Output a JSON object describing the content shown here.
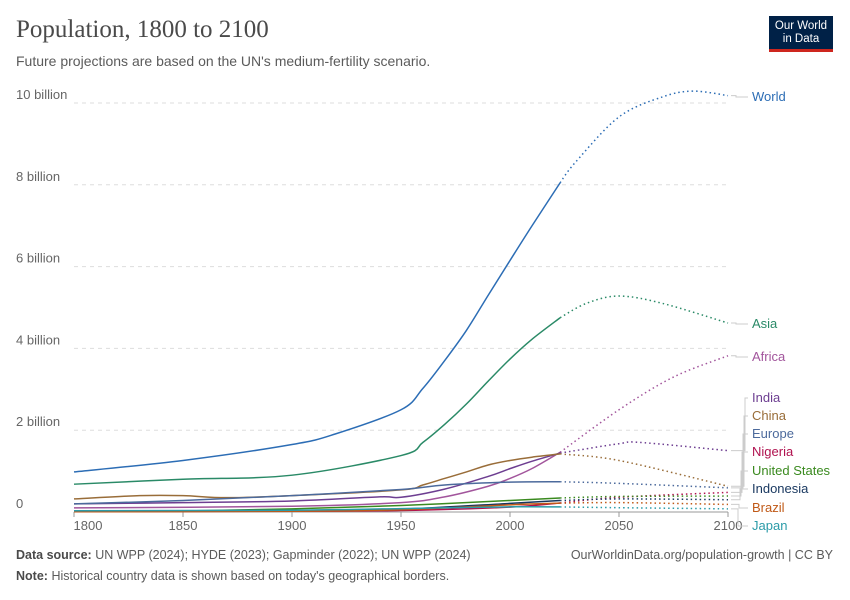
{
  "title": "Population, 1800 to 2100",
  "subtitle": "Future projections are based on the UN's medium-fertility scenario.",
  "logo": "Our World in Data",
  "footer": {
    "source_label": "Data source:",
    "source": "UN WPP (2024); HYDE (2023); Gapminder (2022); UN WPP (2024)",
    "url": "OurWorldinData.org/population-growth | CC BY",
    "note_label": "Note:",
    "note": "Historical country data is shown based on today's geographical borders."
  },
  "chart_data": {
    "type": "line",
    "xlim": [
      1800,
      2100
    ],
    "ylim": [
      0,
      10.5
    ],
    "projection_start": 2023,
    "x_ticks": [
      1800,
      1850,
      1900,
      1950,
      2000,
      2050,
      2100
    ],
    "y_ticks": [
      {
        "v": 0,
        "label": "0"
      },
      {
        "v": 2,
        "label": "2 billion"
      },
      {
        "v": 4,
        "label": "4 billion"
      },
      {
        "v": 6,
        "label": "6 billion"
      },
      {
        "v": 8,
        "label": "8 billion"
      },
      {
        "v": 10,
        "label": "10 billion"
      }
    ],
    "grid": true,
    "legend": "right, inline labels",
    "series": [
      {
        "name": "World",
        "color": "#2c6db5",
        "x": [
          1800,
          1850,
          1900,
          1920,
          1950,
          1960,
          1970,
          1980,
          1990,
          2000,
          2010,
          2023,
          2030,
          2050,
          2070,
          2084,
          2100
        ],
        "y": [
          0.98,
          1.26,
          1.65,
          1.91,
          2.5,
          3.02,
          3.7,
          4.44,
          5.3,
          6.15,
          6.99,
          8.05,
          8.55,
          9.66,
          10.15,
          10.29,
          10.18
        ]
      },
      {
        "name": "Asia",
        "color": "#2a8a67",
        "x": [
          1800,
          1850,
          1900,
          1950,
          1960,
          1970,
          1980,
          1990,
          2000,
          2010,
          2023,
          2035,
          2050,
          2070,
          2100
        ],
        "y": [
          0.68,
          0.8,
          0.9,
          1.38,
          1.7,
          2.14,
          2.64,
          3.2,
          3.74,
          4.22,
          4.75,
          5.1,
          5.28,
          5.1,
          4.62
        ]
      },
      {
        "name": "Africa",
        "color": "#a2559c",
        "x": [
          1800,
          1900,
          1950,
          1970,
          1990,
          2000,
          2010,
          2023,
          2050,
          2075,
          2100
        ],
        "y": [
          0.1,
          0.14,
          0.23,
          0.37,
          0.63,
          0.82,
          1.06,
          1.46,
          2.5,
          3.3,
          3.82
        ]
      },
      {
        "name": "India",
        "color": "#6d3e91",
        "x": [
          1800,
          1850,
          1900,
          1940,
          1950,
          1970,
          1990,
          2000,
          2010,
          2023,
          2050,
          2060,
          2100
        ],
        "y": [
          0.2,
          0.23,
          0.27,
          0.37,
          0.36,
          0.56,
          0.87,
          1.06,
          1.24,
          1.44,
          1.67,
          1.7,
          1.5
        ]
      },
      {
        "name": "China",
        "color": "#996d39",
        "x": [
          1800,
          1830,
          1850,
          1870,
          1900,
          1950,
          1960,
          1970,
          1980,
          1990,
          2000,
          2010,
          2023,
          2050,
          2100
        ],
        "y": [
          0.32,
          0.4,
          0.4,
          0.35,
          0.4,
          0.54,
          0.66,
          0.82,
          0.98,
          1.15,
          1.26,
          1.34,
          1.42,
          1.26,
          0.63
        ]
      },
      {
        "name": "Europe",
        "color": "#4c6a9c",
        "x": [
          1800,
          1850,
          1900,
          1950,
          1970,
          2000,
          2023,
          2050,
          2100
        ],
        "y": [
          0.2,
          0.28,
          0.4,
          0.55,
          0.66,
          0.73,
          0.74,
          0.7,
          0.59
        ]
      },
      {
        "name": "Nigeria",
        "color": "#b0124f",
        "x": [
          1800,
          1900,
          1950,
          2000,
          2023,
          2050,
          2100
        ],
        "y": [
          0.01,
          0.02,
          0.037,
          0.12,
          0.22,
          0.36,
          0.48
        ]
      },
      {
        "name": "United States",
        "color": "#3a8a1f",
        "x": [
          1800,
          1850,
          1900,
          1950,
          2000,
          2023,
          2050,
          2100
        ],
        "y": [
          0.006,
          0.023,
          0.076,
          0.158,
          0.282,
          0.343,
          0.38,
          0.39
        ]
      },
      {
        "name": "Indonesia",
        "color": "#18375f",
        "x": [
          1800,
          1900,
          1950,
          2000,
          2023,
          2050,
          2100
        ],
        "y": [
          0.016,
          0.04,
          0.07,
          0.21,
          0.28,
          0.32,
          0.3
        ]
      },
      {
        "name": "Brazil",
        "color": "#c05917",
        "x": [
          1800,
          1900,
          1950,
          2000,
          2023,
          2050,
          2100
        ],
        "y": [
          0.005,
          0.018,
          0.054,
          0.175,
          0.216,
          0.23,
          0.185
        ]
      },
      {
        "name": "Japan",
        "color": "#2b9ba8",
        "x": [
          1800,
          1900,
          1950,
          2000,
          2023,
          2050,
          2100
        ],
        "y": [
          0.03,
          0.044,
          0.084,
          0.127,
          0.124,
          0.105,
          0.077
        ]
      }
    ]
  }
}
